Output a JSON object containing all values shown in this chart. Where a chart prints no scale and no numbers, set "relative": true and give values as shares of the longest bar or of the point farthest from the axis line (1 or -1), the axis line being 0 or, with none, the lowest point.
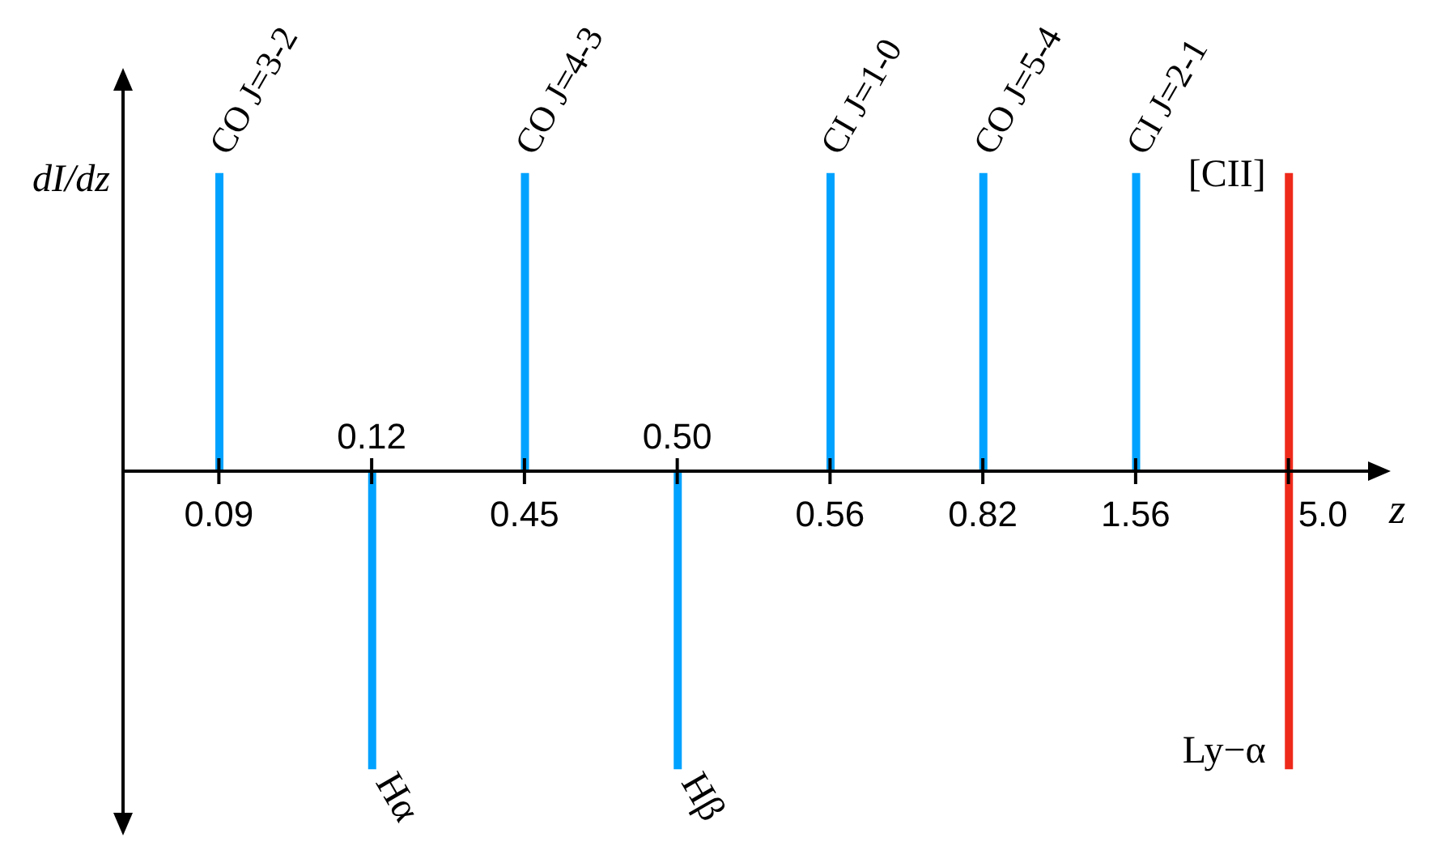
{
  "chart_data": {
    "type": "bar",
    "relative": true,
    "stacked": true,
    "xlabel": "z",
    "ylabel": "dI/dz",
    "categories": [
      "0.09",
      "0.12",
      "0.45",
      "0.50",
      "0.56",
      "0.82",
      "1.56",
      "5.0"
    ],
    "series": [
      {
        "colors": [
          "#00a2ff",
          null,
          "#00a2ff",
          null,
          "#00a2ff",
          "#00a2ff",
          "#00a2ff",
          "#ee2a1b"
        ],
        "values": [
          1,
          null,
          1,
          null,
          1,
          1,
          1,
          1
        ]
      },
      {
        "colors": [
          null,
          "#00a2ff",
          null,
          "#00a2ff",
          null,
          null,
          null,
          "#ee2a1b"
        ],
        "values": [
          null,
          -1,
          null,
          -1,
          null,
          null,
          null,
          -1
        ]
      }
    ],
    "annotations": [
      {
        "text": "CO J=3-2",
        "x": "0.09",
        "y": 1
      },
      {
        "text": "CO J=4-3",
        "x": "0.45",
        "y": 1
      },
      {
        "text": "CI J=1-0",
        "x": "0.56",
        "y": 1
      },
      {
        "text": "CO J=5-4",
        "x": "0.82",
        "y": 1
      },
      {
        "text": "CI J=2-1",
        "x": "1.56",
        "y": 1
      },
      {
        "text": "[CII]",
        "x": "5.0",
        "y": 1
      },
      {
        "text": "Hα",
        "x": "0.12",
        "y": -1
      },
      {
        "text": "Hβ",
        "x": "0.50",
        "y": -1
      },
      {
        "text": "Ly−α",
        "x": "5.0",
        "y": -1
      }
    ]
  }
}
